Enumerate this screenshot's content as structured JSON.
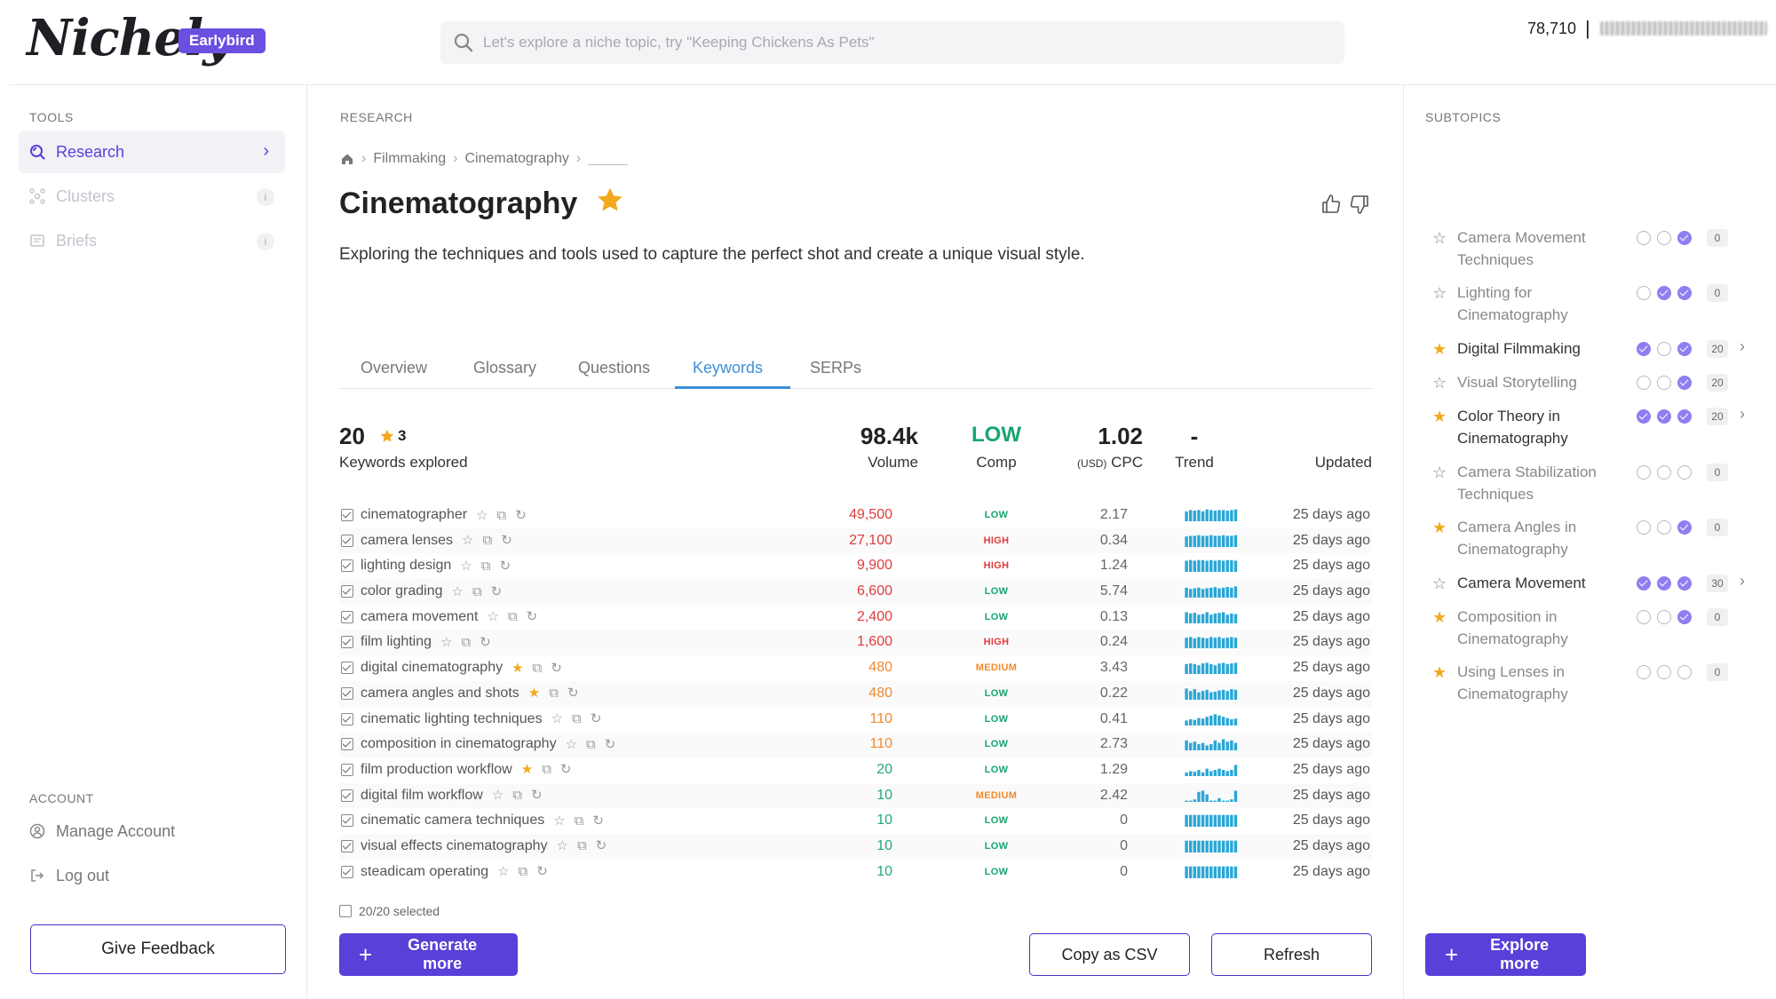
{
  "header": {
    "logo": "Nichely",
    "plan_badge": "Earlybird",
    "search_placeholder": "Let's explore a niche topic, try \"Keeping Chickens As Pets\"",
    "credits": "78,710",
    "separator": "|"
  },
  "sidebar": {
    "tools_label": "TOOLS",
    "items": [
      {
        "label": "Research",
        "icon": "research-icon",
        "active": true
      },
      {
        "label": "Clusters",
        "icon": "clusters-icon",
        "badge": "i"
      },
      {
        "label": "Briefs",
        "icon": "briefs-icon",
        "badge": "i"
      }
    ],
    "account_label": "ACCOUNT",
    "account_items": [
      {
        "label": "Manage Account",
        "icon": "user-circle-icon"
      },
      {
        "label": "Log out",
        "icon": "logout-icon"
      }
    ],
    "feedback_label": "Give Feedback"
  },
  "main": {
    "section_label": "RESEARCH",
    "breadcrumb": [
      "Filmmaking",
      "Cinematography",
      "_____"
    ],
    "title": "Cinematography",
    "description": "Exploring the techniques and tools used to capture the perfect shot and create a unique visual style.",
    "tabs": [
      "Overview",
      "Glossary",
      "Questions",
      "Keywords",
      "SERPs"
    ],
    "active_tab": "Keywords",
    "summary": {
      "keywords_count": "20",
      "starred_count": "3",
      "keywords_label": "Keywords explored",
      "volume": "98.4k",
      "volume_label": "Volume",
      "comp": "LOW",
      "comp_label": "Comp",
      "cpc": "1.02",
      "cpc_unit": "(USD)",
      "cpc_label": "CPC",
      "trend": "-",
      "trend_label": "Trend",
      "updated_label": "Updated"
    },
    "keywords": [
      {
        "keyword": "cinematographer",
        "starred": false,
        "volume": "49,500",
        "vol_color": "red",
        "comp": "LOW",
        "cpc": "2.17",
        "updated": "25 days ago",
        "trend": [
          0.8,
          0.9,
          0.85,
          0.9,
          0.8,
          0.95,
          0.9,
          0.85,
          0.9,
          0.9,
          0.85,
          0.9,
          0.95
        ]
      },
      {
        "keyword": "camera lenses",
        "starred": false,
        "volume": "27,100",
        "vol_color": "red",
        "comp": "HIGH",
        "cpc": "0.34",
        "updated": "25 days ago",
        "trend": [
          0.85,
          0.9,
          0.9,
          0.95,
          0.9,
          0.9,
          0.95,
          0.9,
          0.9,
          0.95,
          0.9,
          0.9,
          0.95
        ]
      },
      {
        "keyword": "lighting design",
        "starred": false,
        "volume": "9,900",
        "vol_color": "red",
        "comp": "HIGH",
        "cpc": "1.24",
        "updated": "25 days ago",
        "trend": [
          0.9,
          0.95,
          0.9,
          0.95,
          0.95,
          0.9,
          0.95,
          0.9,
          0.95,
          0.9,
          0.95,
          0.95,
          0.9
        ]
      },
      {
        "keyword": "color grading",
        "starred": false,
        "volume": "6,600",
        "vol_color": "red",
        "comp": "LOW",
        "cpc": "5.74",
        "updated": "25 days ago",
        "trend": [
          0.8,
          0.7,
          0.75,
          0.8,
          0.7,
          0.75,
          0.8,
          0.85,
          0.75,
          0.8,
          0.85,
          0.8,
          0.9
        ]
      },
      {
        "keyword": "camera movement",
        "starred": false,
        "volume": "2,400",
        "vol_color": "red",
        "comp": "LOW",
        "cpc": "0.13",
        "updated": "25 days ago",
        "trend": [
          0.9,
          0.8,
          0.85,
          0.7,
          0.75,
          0.9,
          0.7,
          0.8,
          0.85,
          0.9,
          0.7,
          0.8,
          0.75
        ]
      },
      {
        "keyword": "film lighting",
        "starred": false,
        "volume": "1,600",
        "vol_color": "red",
        "comp": "HIGH",
        "cpc": "0.24",
        "updated": "25 days ago",
        "trend": [
          0.85,
          0.9,
          0.8,
          0.9,
          0.85,
          0.8,
          0.9,
          0.85,
          0.9,
          0.8,
          0.85,
          0.9,
          0.85
        ]
      },
      {
        "keyword": "digital cinematography",
        "starred": true,
        "volume": "480",
        "vol_color": "orange",
        "comp": "MEDIUM",
        "cpc": "3.43",
        "updated": "25 days ago",
        "trend": [
          0.8,
          0.85,
          0.8,
          0.7,
          0.85,
          0.9,
          0.8,
          0.7,
          0.85,
          0.9,
          0.8,
          0.85,
          0.9
        ]
      },
      {
        "keyword": "camera angles and shots",
        "starred": true,
        "volume": "480",
        "vol_color": "orange",
        "comp": "LOW",
        "cpc": "0.22",
        "updated": "25 days ago",
        "trend": [
          0.9,
          0.7,
          0.85,
          0.6,
          0.7,
          0.8,
          0.6,
          0.65,
          0.75,
          0.8,
          0.7,
          0.85,
          0.8
        ]
      },
      {
        "keyword": "cinematic lighting techniques",
        "starred": false,
        "volume": "110",
        "vol_color": "orange",
        "comp": "LOW",
        "cpc": "0.41",
        "updated": "25 days ago",
        "trend": [
          0.4,
          0.5,
          0.45,
          0.6,
          0.55,
          0.7,
          0.8,
          0.9,
          0.8,
          0.7,
          0.6,
          0.5,
          0.55
        ]
      },
      {
        "keyword": "composition in cinematography",
        "starred": false,
        "volume": "110",
        "vol_color": "orange",
        "comp": "LOW",
        "cpc": "2.73",
        "updated": "25 days ago",
        "trend": [
          0.8,
          0.6,
          0.7,
          0.5,
          0.6,
          0.4,
          0.5,
          0.8,
          0.6,
          0.9,
          0.7,
          0.8,
          0.6
        ]
      },
      {
        "keyword": "film production workflow",
        "starred": true,
        "volume": "20",
        "vol_color": "green",
        "comp": "LOW",
        "cpc": "1.29",
        "updated": "25 days ago",
        "trend": [
          0.3,
          0.4,
          0.35,
          0.5,
          0.3,
          0.6,
          0.4,
          0.5,
          0.6,
          0.5,
          0.4,
          0.5,
          0.9
        ]
      },
      {
        "keyword": "digital film workflow",
        "starred": false,
        "volume": "10",
        "vol_color": "green",
        "comp": "MEDIUM",
        "cpc": "2.42",
        "updated": "25 days ago",
        "trend": [
          0.1,
          0.1,
          0.2,
          0.8,
          0.9,
          0.6,
          0.1,
          0.1,
          0.3,
          0.1,
          0.1,
          0.2,
          0.9
        ]
      },
      {
        "keyword": "cinematic camera techniques",
        "starred": false,
        "volume": "10",
        "vol_color": "green",
        "comp": "LOW",
        "cpc": "0",
        "updated": "25 days ago",
        "trend": [
          0.95,
          0.95,
          0.95,
          0.95,
          0.95,
          0.95,
          0.95,
          0.95,
          0.95,
          0.95,
          0.95,
          0.95,
          0.95
        ]
      },
      {
        "keyword": "visual effects cinematography",
        "starred": false,
        "volume": "10",
        "vol_color": "green",
        "comp": "LOW",
        "cpc": "0",
        "updated": "25 days ago",
        "trend": [
          0.95,
          0.95,
          0.95,
          0.95,
          0.95,
          0.95,
          0.95,
          0.95,
          0.95,
          0.95,
          0.95,
          0.95,
          0.95
        ]
      },
      {
        "keyword": "steadicam operating",
        "starred": false,
        "volume": "10",
        "vol_color": "green",
        "comp": "LOW",
        "cpc": "0",
        "updated": "25 days ago",
        "trend": [
          0.95,
          0.95,
          0.95,
          0.95,
          0.95,
          0.95,
          0.95,
          0.95,
          0.95,
          0.95,
          0.95,
          0.95,
          0.95
        ]
      }
    ],
    "selected_info": "20/20 selected",
    "generate_label": "Generate more",
    "copy_csv_label": "Copy as CSV",
    "refresh_label": "Refresh"
  },
  "subtopics": {
    "label": "SUBTOPICS",
    "items": [
      {
        "name": "Camera Movement Techniques",
        "starred": false,
        "bold": false,
        "checks": [
          false,
          false,
          true
        ],
        "count": "0",
        "chevron": false
      },
      {
        "name": "Lighting for Cinematography",
        "starred": false,
        "bold": false,
        "checks": [
          false,
          true,
          true
        ],
        "count": "0",
        "chevron": false
      },
      {
        "name": "Digital Filmmaking",
        "starred": true,
        "bold": true,
        "checks": [
          true,
          false,
          true
        ],
        "count": "20",
        "chevron": true
      },
      {
        "name": "Visual Storytelling",
        "starred": false,
        "bold": false,
        "checks": [
          false,
          false,
          true
        ],
        "count": "20",
        "chevron": false
      },
      {
        "name": "Color Theory in Cinematography",
        "starred": true,
        "bold": true,
        "checks": [
          true,
          true,
          true
        ],
        "count": "20",
        "chevron": true
      },
      {
        "name": "Camera Stabilization Techniques",
        "starred": false,
        "bold": false,
        "checks": [
          false,
          false,
          false
        ],
        "count": "0",
        "chevron": false
      },
      {
        "name": "Camera Angles in Cinematography",
        "starred": true,
        "bold": false,
        "checks": [
          false,
          false,
          true
        ],
        "count": "0",
        "chevron": false
      },
      {
        "name": "Camera Movement",
        "starred": false,
        "bold": true,
        "checks": [
          true,
          true,
          true
        ],
        "count": "30",
        "chevron": true
      },
      {
        "name": "Composition in Cinematography",
        "starred": true,
        "bold": false,
        "checks": [
          false,
          false,
          true
        ],
        "count": "0",
        "chevron": false
      },
      {
        "name": "Using Lenses in Cinematography",
        "starred": true,
        "bold": false,
        "checks": [
          false,
          false,
          false
        ],
        "count": "0",
        "chevron": false
      }
    ],
    "explore_label": "Explore more"
  },
  "colors": {
    "brand": "#5a3fd8",
    "accent_blue": "#3b8fd9",
    "star": "#f2a91d",
    "low": "#18a56f",
    "high": "#e03b3b",
    "medium": "#f08a2d",
    "trend_bar": "#2aa7d6"
  }
}
